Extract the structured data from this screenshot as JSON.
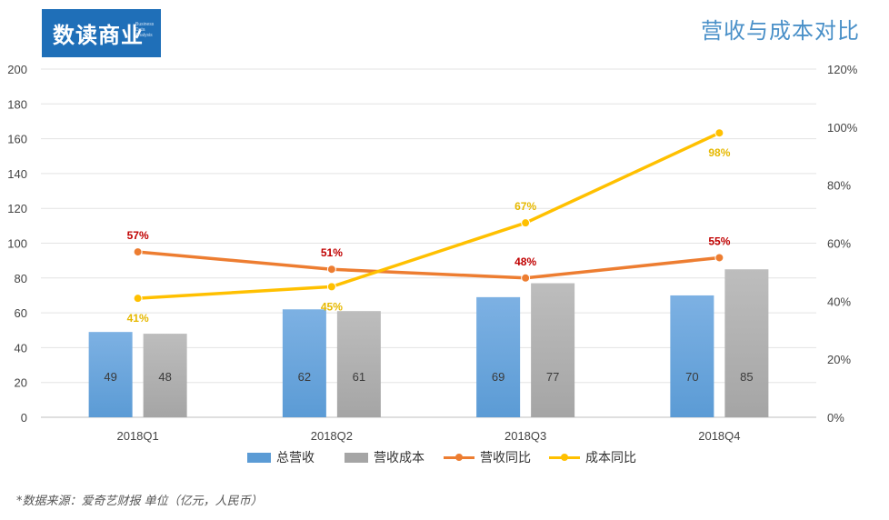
{
  "logo": {
    "text": "数读商业",
    "sub": "Business Data Analysis"
  },
  "title": "营收与成本对比",
  "footnote": "*数据来源：爱奇艺财报    单位（亿元，人民币）",
  "colors": {
    "revenue": "#5b9bd5",
    "cost": "#a5a5a5",
    "revenue_yoy": "#ed7d31",
    "cost_yoy": "#ffc000",
    "revenue_yoy_label": "#c00000",
    "cost_yoy_label": "#e6b800"
  },
  "legend": [
    {
      "label": "总营收",
      "kind": "bar",
      "color": "#5b9bd5"
    },
    {
      "label": "营收成本",
      "kind": "bar",
      "color": "#a5a5a5"
    },
    {
      "label": "营收同比",
      "kind": "line",
      "color": "#ed7d31"
    },
    {
      "label": "成本同比",
      "kind": "line",
      "color": "#ffc000"
    }
  ],
  "chart_data": {
    "type": "bar",
    "title": "营收与成本对比",
    "categories": [
      "2018Q1",
      "2018Q2",
      "2018Q3",
      "2018Q4"
    ],
    "ylim": [
      0,
      200
    ],
    "y_ticks": [
      "0",
      "20",
      "40",
      "60",
      "80",
      "100",
      "120",
      "140",
      "160",
      "180",
      "200"
    ],
    "y2lim": [
      0,
      120
    ],
    "y2_ticks": [
      "0%",
      "20%",
      "40%",
      "60%",
      "80%",
      "100%",
      "120%"
    ],
    "grid": true,
    "legend_position": "bottom",
    "series": [
      {
        "name": "总营收",
        "type": "bar",
        "axis": "left",
        "values": [
          49,
          62,
          69,
          70
        ],
        "labels": [
          "49",
          "62",
          "69",
          "70"
        ]
      },
      {
        "name": "营收成本",
        "type": "bar",
        "axis": "left",
        "values": [
          48,
          61,
          77,
          85
        ],
        "labels": [
          "48",
          "61",
          "77",
          "85"
        ]
      },
      {
        "name": "营收同比",
        "type": "line",
        "axis": "right",
        "values": [
          57,
          51,
          48,
          55
        ],
        "labels": [
          "57%",
          "51%",
          "48%",
          "55%"
        ]
      },
      {
        "name": "成本同比",
        "type": "line",
        "axis": "right",
        "values": [
          41,
          45,
          67,
          98
        ],
        "labels": [
          "41%",
          "45%",
          "67%",
          "98%"
        ]
      }
    ]
  }
}
